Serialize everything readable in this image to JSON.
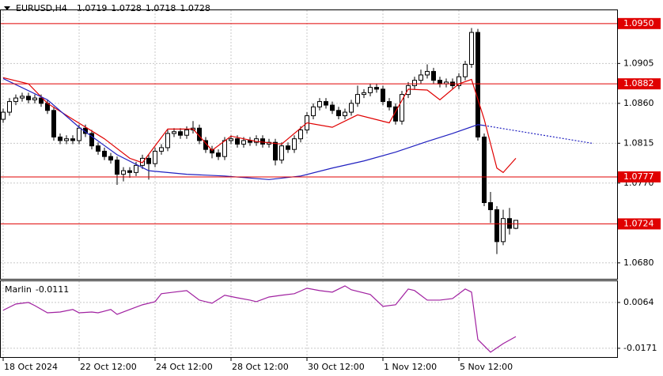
{
  "chart_data": [
    {
      "type": "candlestick",
      "title": "EURUSD,H4",
      "categories": [
        "18 Oct 2024",
        null,
        null,
        null,
        null,
        null,
        null,
        null,
        null,
        null,
        null,
        null,
        "22 Oct 12:00",
        null,
        null,
        null,
        null,
        null,
        null,
        null,
        null,
        null,
        null,
        null,
        "24 Oct 12:00",
        null,
        null,
        null,
        null,
        null,
        null,
        null,
        null,
        null,
        null,
        null,
        "28 Oct 12:00",
        null,
        null,
        null,
        null,
        null,
        null,
        null,
        null,
        null,
        null,
        null,
        "30 Oct 12:00",
        null,
        null,
        null,
        null,
        null,
        null,
        null,
        null,
        null,
        null,
        null,
        "1 Nov 12:00",
        null,
        null,
        null,
        null,
        null,
        null,
        null,
        null,
        null,
        null,
        null,
        "5 Nov 12:00",
        null,
        null,
        null,
        null,
        null,
        null,
        null,
        null,
        null
      ],
      "open": [
        1.0842,
        1.085,
        1.0862,
        1.0866,
        1.0868,
        1.0864,
        1.0866,
        1.086,
        1.0852,
        1.0822,
        1.0818,
        1.082,
        1.0818,
        1.0832,
        1.0826,
        1.0812,
        1.0806,
        1.08,
        1.0796,
        1.078,
        1.0784,
        1.0782,
        1.079,
        1.0798,
        1.0792,
        1.0806,
        1.081,
        1.0826,
        1.0828,
        1.0824,
        1.083,
        1.0832,
        1.0818,
        1.0808,
        1.0804,
        1.08,
        1.0818,
        1.082,
        1.0814,
        1.0818,
        1.0816,
        1.082,
        1.0814,
        1.0816,
        1.0796,
        1.0812,
        1.0808,
        1.082,
        1.083,
        1.0846,
        1.0856,
        1.0862,
        1.0858,
        1.0852,
        1.0846,
        1.085,
        1.086,
        1.087,
        1.0872,
        1.0878,
        1.0876,
        1.0862,
        1.0856,
        1.084,
        1.087,
        1.088,
        1.0886,
        1.0892,
        1.0896,
        1.0886,
        1.0882,
        1.0884,
        1.088,
        1.089,
        1.0904,
        1.094,
        1.0822,
        1.0748,
        1.074,
        1.0704,
        1.073,
        1.0719
      ],
      "high": [
        1.0854,
        1.0866,
        1.087,
        1.0872,
        1.0872,
        1.087,
        1.087,
        1.0864,
        1.0856,
        1.0826,
        1.0824,
        1.0824,
        1.0836,
        1.0836,
        1.083,
        1.0816,
        1.081,
        1.0804,
        1.08,
        1.0788,
        1.0788,
        1.0794,
        1.0802,
        1.0802,
        1.081,
        1.0814,
        1.083,
        1.0832,
        1.0832,
        1.0834,
        1.084,
        1.0836,
        1.0822,
        1.0812,
        1.0808,
        1.0822,
        1.0824,
        1.0824,
        1.0822,
        1.0822,
        1.0824,
        1.0824,
        1.082,
        1.082,
        1.0816,
        1.0816,
        1.0824,
        1.0834,
        1.085,
        1.086,
        1.0866,
        1.0866,
        1.0862,
        1.0856,
        1.0854,
        1.0864,
        1.088,
        1.0876,
        1.0882,
        1.0882,
        1.088,
        1.0866,
        1.086,
        1.0874,
        1.0884,
        1.089,
        1.0898,
        1.0904,
        1.09,
        1.089,
        1.0888,
        1.0888,
        1.0894,
        1.0908,
        1.0945,
        1.0944,
        1.0826,
        1.076,
        1.0744,
        1.074,
        1.0742,
        1.0728
      ],
      "low": [
        1.0838,
        1.0846,
        1.0858,
        1.0862,
        1.086,
        1.086,
        1.0856,
        1.0848,
        1.0818,
        1.0814,
        1.0814,
        1.0814,
        1.0814,
        1.0822,
        1.0808,
        1.0802,
        1.0796,
        1.0792,
        1.0768,
        1.0772,
        1.0776,
        1.0778,
        1.0786,
        1.0774,
        1.0788,
        1.0802,
        1.0806,
        1.0822,
        1.082,
        1.082,
        1.0826,
        1.0814,
        1.0804,
        1.0798,
        1.0796,
        1.0796,
        1.0814,
        1.081,
        1.081,
        1.0812,
        1.0812,
        1.081,
        1.081,
        1.079,
        1.0792,
        1.0804,
        1.0804,
        1.0816,
        1.0826,
        1.0842,
        1.0852,
        1.0854,
        1.0848,
        1.0842,
        1.0842,
        1.0846,
        1.0856,
        1.0866,
        1.0868,
        1.0872,
        1.0858,
        1.0852,
        1.0836,
        1.0836,
        1.0866,
        1.0876,
        1.0882,
        1.0888,
        1.0882,
        1.0878,
        1.0878,
        1.0876,
        1.0876,
        1.0886,
        1.09,
        1.0818,
        1.0744,
        1.0725,
        1.069,
        1.07,
        1.0712,
        1.0718
      ],
      "close": [
        1.085,
        1.0862,
        1.0866,
        1.0868,
        1.0864,
        1.0866,
        1.086,
        1.0852,
        1.0822,
        1.0818,
        1.082,
        1.0818,
        1.0832,
        1.0826,
        1.0812,
        1.0806,
        1.08,
        1.0796,
        1.078,
        1.0784,
        1.0782,
        1.079,
        1.0798,
        1.0792,
        1.0806,
        1.081,
        1.0826,
        1.0828,
        1.0824,
        1.083,
        1.0832,
        1.0818,
        1.0808,
        1.0804,
        1.08,
        1.0818,
        1.082,
        1.0814,
        1.0818,
        1.0816,
        1.082,
        1.0814,
        1.0816,
        1.0796,
        1.0812,
        1.0808,
        1.082,
        1.083,
        1.0846,
        1.0856,
        1.0862,
        1.0858,
        1.0852,
        1.0846,
        1.085,
        1.086,
        1.087,
        1.0872,
        1.0878,
        1.0876,
        1.0862,
        1.0856,
        1.084,
        1.087,
        1.088,
        1.0886,
        1.0892,
        1.0896,
        1.0886,
        1.0882,
        1.0884,
        1.088,
        1.089,
        1.0904,
        1.094,
        1.0822,
        1.0748,
        1.074,
        1.0704,
        1.073,
        1.0719,
        1.0728
      ],
      "series": [
        {
          "color": "#e00000",
          "x": [
            0,
            4,
            7,
            11,
            16,
            20,
            22,
            26,
            30,
            33,
            36,
            40,
            44,
            48,
            52,
            56,
            61,
            64,
            67,
            69,
            72,
            74,
            76,
            78,
            79,
            81
          ],
          "values": [
            1.0889,
            1.0882,
            1.086,
            1.0842,
            1.082,
            1.0798,
            1.0793,
            1.0831,
            1.0831,
            1.0807,
            1.0823,
            1.0817,
            1.0814,
            1.0838,
            1.0833,
            1.0847,
            1.0838,
            1.0876,
            1.0875,
            1.0864,
            1.0882,
            1.0887,
            1.0842,
            1.0787,
            1.0782,
            1.0798
          ]
        },
        {
          "color": "#2020c0",
          "x": [
            0,
            7,
            12,
            18,
            23,
            29,
            35,
            42,
            47,
            52,
            57,
            62,
            67,
            71,
            75,
            76
          ],
          "values": [
            1.0888,
            1.0864,
            1.0833,
            1.0802,
            1.0784,
            1.078,
            1.0778,
            1.0774,
            1.0778,
            1.0787,
            1.0795,
            1.0805,
            1.0817,
            1.0826,
            1.0836,
            1.0835
          ]
        },
        {
          "color": "#2020c0",
          "dashed": true,
          "x": [
            76,
            93
          ],
          "values": [
            1.0835,
            1.0815
          ]
        }
      ],
      "levels": [
        {
          "value": 1.095,
          "label": "1.0950"
        },
        1.0882,
        1.0777,
        1.0724
      ],
      "level_color": "#e00000",
      "ylim": [
        1.0662,
        1.0965
      ],
      "yticks": [
        {
          "value": 1.068,
          "label": "1.0680"
        },
        {
          "value": 1.077,
          "label": "1.0770"
        },
        1.0815,
        {
          "value": 1.086,
          "label": "1.0860"
        },
        1.0905
      ],
      "grid": true
    },
    {
      "type": "line",
      "title": "Marlin",
      "series": [
        {
          "color": "#a020a0",
          "x": [
            0,
            2,
            4,
            5,
            7,
            9,
            11,
            12,
            14,
            15,
            17,
            18,
            20,
            22,
            24,
            25,
            27,
            29,
            31,
            33,
            35,
            37,
            39,
            40,
            42,
            44,
            46,
            48,
            50,
            52,
            54,
            55,
            58,
            60,
            62,
            64,
            65,
            67,
            69,
            71,
            73,
            74,
            75,
            77,
            79,
            81
          ],
          "values": [
            0.0024,
            0.0056,
            0.0064,
            0.0048,
            0.0011,
            0.0015,
            0.0028,
            0.0011,
            0.0015,
            0.0011,
            0.0028,
            0.0003,
            0.0028,
            0.0052,
            0.0068,
            0.0109,
            0.0117,
            0.0125,
            0.0076,
            0.006,
            0.0101,
            0.0088,
            0.0076,
            0.0068,
            0.0092,
            0.0101,
            0.0109,
            0.0137,
            0.0125,
            0.0117,
            0.0149,
            0.0129,
            0.0105,
            0.0044,
            0.0052,
            0.0133,
            0.0125,
            0.0076,
            0.0076,
            0.0084,
            0.0133,
            0.0117,
            -0.0126,
            -0.0191,
            -0.0147,
            -0.0111
          ]
        }
      ],
      "ylim": [
        -0.0216,
        0.0173
      ],
      "yticks": [
        -0.0171,
        0.0064
      ],
      "grid": true
    }
  ]
}
